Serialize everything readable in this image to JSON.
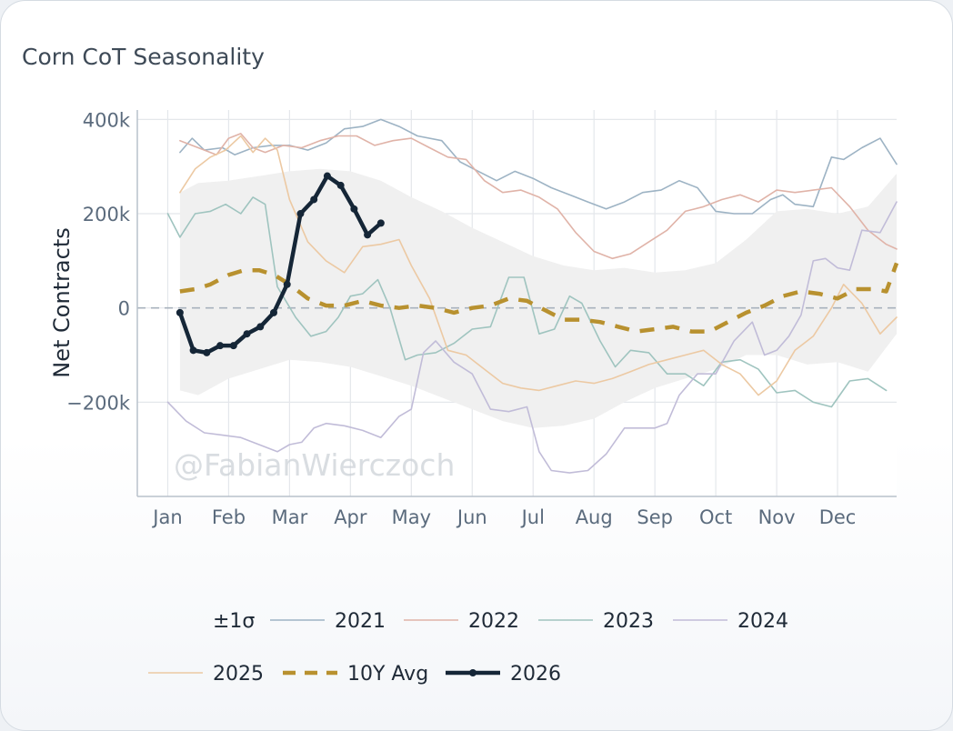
{
  "title": "Corn CoT Seasonality",
  "watermark": "@FabianWierczoch",
  "chart_data": {
    "type": "line",
    "ylabel": "Net Contracts",
    "ylim": [
      -400000,
      420000
    ],
    "xlim": [
      -0.5,
      11.97
    ],
    "y_ticks": [
      400000,
      200000,
      0,
      -200000
    ],
    "y_tick_labels": [
      "400k",
      "200k",
      "0",
      "−200k"
    ],
    "x_ticks": [
      0,
      1,
      2,
      3,
      4,
      5,
      6,
      7,
      8,
      9,
      10,
      11
    ],
    "x_tick_labels": [
      "Jan",
      "Feb",
      "Mar",
      "Apr",
      "May",
      "Jun",
      "Jul",
      "Aug",
      "Sep",
      "Oct",
      "Nov",
      "Dec"
    ],
    "grid": true,
    "legend_position": "bottom",
    "band": {
      "name": "±1σ",
      "color": "#f0f0f0",
      "x": [
        0.2,
        0.5,
        1.0,
        1.5,
        2.0,
        2.5,
        3.0,
        3.5,
        4.0,
        4.5,
        5.0,
        5.5,
        6.0,
        6.5,
        7.0,
        7.5,
        8.0,
        8.5,
        9.0,
        9.5,
        10.0,
        10.5,
        11.0,
        11.5,
        11.97
      ],
      "upper": [
        245000,
        265000,
        270000,
        280000,
        290000,
        295000,
        290000,
        270000,
        235000,
        205000,
        170000,
        140000,
        110000,
        90000,
        80000,
        85000,
        75000,
        80000,
        95000,
        145000,
        205000,
        210000,
        200000,
        215000,
        285000
      ],
      "lower": [
        -175000,
        -185000,
        -150000,
        -130000,
        -110000,
        -115000,
        -125000,
        -145000,
        -165000,
        -190000,
        -215000,
        -240000,
        -255000,
        -250000,
        -235000,
        -200000,
        -170000,
        -150000,
        -130000,
        -100000,
        -100000,
        -120000,
        -115000,
        -135000,
        -55000
      ]
    },
    "series": [
      {
        "name": "2021",
        "color": "#9db3c4",
        "width": 1.6,
        "dash": "",
        "x": [
          0.2,
          0.4,
          0.6,
          0.9,
          1.1,
          1.4,
          1.7,
          2.0,
          2.3,
          2.6,
          2.9,
          3.2,
          3.5,
          3.8,
          4.1,
          4.5,
          4.8,
          5.1,
          5.4,
          5.7,
          6.0,
          6.3,
          6.6,
          6.9,
          7.2,
          7.5,
          7.8,
          8.1,
          8.4,
          8.7,
          9.0,
          9.3,
          9.6,
          9.9,
          10.1,
          10.3,
          10.6,
          10.9,
          11.1,
          11.4,
          11.7,
          11.97
        ],
        "y": [
          330000,
          360000,
          335000,
          340000,
          325000,
          340000,
          345000,
          345000,
          335000,
          350000,
          380000,
          385000,
          400000,
          385000,
          365000,
          355000,
          310000,
          290000,
          270000,
          290000,
          275000,
          255000,
          240000,
          225000,
          210000,
          225000,
          245000,
          250000,
          270000,
          255000,
          205000,
          200000,
          200000,
          230000,
          240000,
          220000,
          215000,
          320000,
          315000,
          340000,
          360000,
          305000
        ]
      },
      {
        "name": "2022",
        "color": "#e0b3a8",
        "width": 1.6,
        "dash": "",
        "x": [
          0.2,
          0.5,
          0.8,
          1.0,
          1.2,
          1.4,
          1.6,
          1.9,
          2.2,
          2.5,
          2.8,
          3.1,
          3.4,
          3.7,
          4.0,
          4.3,
          4.6,
          4.9,
          5.2,
          5.5,
          5.8,
          6.1,
          6.4,
          6.7,
          7.0,
          7.3,
          7.6,
          7.9,
          8.2,
          8.5,
          8.8,
          9.1,
          9.4,
          9.7,
          10.0,
          10.3,
          10.6,
          10.9,
          11.2,
          11.5,
          11.8,
          11.97
        ],
        "y": [
          355000,
          340000,
          325000,
          360000,
          370000,
          340000,
          330000,
          345000,
          340000,
          355000,
          365000,
          365000,
          345000,
          355000,
          360000,
          340000,
          320000,
          315000,
          270000,
          245000,
          250000,
          235000,
          210000,
          160000,
          120000,
          105000,
          115000,
          140000,
          165000,
          205000,
          215000,
          230000,
          240000,
          225000,
          250000,
          245000,
          250000,
          255000,
          215000,
          165000,
          135000,
          125000
        ]
      },
      {
        "name": "2023",
        "color": "#9fc4bf",
        "width": 1.6,
        "dash": "",
        "x": [
          0.0,
          0.2,
          0.45,
          0.7,
          0.95,
          1.2,
          1.4,
          1.6,
          1.8,
          2.1,
          2.35,
          2.6,
          2.8,
          3.0,
          3.2,
          3.45,
          3.65,
          3.9,
          4.1,
          4.4,
          4.7,
          5.0,
          5.3,
          5.6,
          5.85,
          6.1,
          6.35,
          6.6,
          6.8,
          7.1,
          7.35,
          7.6,
          7.9,
          8.2,
          8.5,
          8.8,
          9.1,
          9.4,
          9.7,
          10.0,
          10.3,
          10.6,
          10.9,
          11.2,
          11.5,
          11.8
        ],
        "y": [
          200000,
          150000,
          200000,
          205000,
          220000,
          200000,
          235000,
          220000,
          45000,
          -20000,
          -60000,
          -50000,
          -20000,
          25000,
          30000,
          60000,
          0,
          -110000,
          -100000,
          -95000,
          -75000,
          -45000,
          -40000,
          65000,
          65000,
          -55000,
          -45000,
          25000,
          10000,
          -70000,
          -125000,
          -90000,
          -95000,
          -140000,
          -140000,
          -165000,
          -115000,
          -110000,
          -130000,
          -180000,
          -175000,
          -200000,
          -210000,
          -155000,
          -150000,
          -175000
        ]
      },
      {
        "name": "2024",
        "color": "#c1bcd8",
        "width": 1.6,
        "dash": "",
        "x": [
          0.0,
          0.3,
          0.6,
          0.9,
          1.2,
          1.5,
          1.8,
          2.0,
          2.2,
          2.4,
          2.6,
          2.9,
          3.2,
          3.5,
          3.8,
          4.0,
          4.2,
          4.4,
          4.7,
          5.0,
          5.3,
          5.6,
          5.9,
          6.1,
          6.3,
          6.6,
          6.9,
          7.2,
          7.5,
          7.8,
          8.0,
          8.2,
          8.4,
          8.7,
          9.0,
          9.3,
          9.6,
          9.8,
          10.0,
          10.2,
          10.4,
          10.6,
          10.8,
          11.0,
          11.2,
          11.4,
          11.7,
          11.97
        ],
        "y": [
          -200000,
          -240000,
          -265000,
          -270000,
          -275000,
          -290000,
          -305000,
          -290000,
          -285000,
          -255000,
          -245000,
          -250000,
          -260000,
          -275000,
          -230000,
          -215000,
          -95000,
          -70000,
          -115000,
          -140000,
          -215000,
          -220000,
          -210000,
          -305000,
          -345000,
          -350000,
          -345000,
          -310000,
          -255000,
          -255000,
          -255000,
          -245000,
          -185000,
          -140000,
          -140000,
          -70000,
          -30000,
          -100000,
          -90000,
          -60000,
          -15000,
          100000,
          105000,
          85000,
          80000,
          165000,
          160000,
          225000
        ]
      },
      {
        "name": "2025",
        "color": "#ecc9a3",
        "width": 1.6,
        "dash": "",
        "x": [
          0.2,
          0.45,
          0.7,
          0.95,
          1.2,
          1.4,
          1.6,
          1.8,
          2.0,
          2.3,
          2.6,
          2.9,
          3.2,
          3.5,
          3.8,
          4.0,
          4.3,
          4.6,
          4.9,
          5.2,
          5.5,
          5.8,
          6.1,
          6.4,
          6.7,
          7.0,
          7.3,
          7.6,
          7.9,
          8.2,
          8.5,
          8.8,
          9.1,
          9.4,
          9.7,
          10.0,
          10.3,
          10.6,
          10.9,
          11.1,
          11.4,
          11.7,
          11.97
        ],
        "y": [
          245000,
          295000,
          320000,
          335000,
          365000,
          330000,
          360000,
          335000,
          230000,
          140000,
          100000,
          75000,
          130000,
          135000,
          145000,
          90000,
          20000,
          -90000,
          -100000,
          -130000,
          -160000,
          -170000,
          -175000,
          -165000,
          -155000,
          -160000,
          -150000,
          -135000,
          -120000,
          -110000,
          -100000,
          -90000,
          -120000,
          -140000,
          -185000,
          -155000,
          -90000,
          -60000,
          0,
          50000,
          10000,
          -55000,
          -20000
        ]
      },
      {
        "name": "10Y Avg",
        "color": "#b8912f",
        "width": 4.5,
        "dash": "16 12",
        "x": [
          0.2,
          0.45,
          0.7,
          1.0,
          1.25,
          1.5,
          1.75,
          2.0,
          2.3,
          2.6,
          2.9,
          3.2,
          3.5,
          3.8,
          4.1,
          4.4,
          4.7,
          5.0,
          5.3,
          5.6,
          5.9,
          6.2,
          6.5,
          6.8,
          7.1,
          7.4,
          7.7,
          8.0,
          8.3,
          8.6,
          8.9,
          9.2,
          9.5,
          9.8,
          10.1,
          10.4,
          10.7,
          11.0,
          11.3,
          11.6,
          11.8,
          11.97
        ],
        "y": [
          35000,
          40000,
          50000,
          70000,
          80000,
          80000,
          70000,
          50000,
          20000,
          5000,
          5000,
          15000,
          5000,
          0,
          5000,
          0,
          -10000,
          0,
          5000,
          20000,
          15000,
          -5000,
          -25000,
          -25000,
          -30000,
          -40000,
          -50000,
          -45000,
          -40000,
          -50000,
          -50000,
          -30000,
          -10000,
          5000,
          25000,
          35000,
          30000,
          20000,
          40000,
          40000,
          35000,
          95000
        ]
      },
      {
        "name": "2026",
        "color": "#152637",
        "width": 4.5,
        "dash": "",
        "markers": true,
        "x": [
          0.2,
          0.42,
          0.64,
          0.86,
          1.08,
          1.3,
          1.52,
          1.74,
          1.96,
          2.18,
          2.4,
          2.62,
          2.84,
          3.06,
          3.28,
          3.5,
          3.72,
          3.94
        ],
        "y": [
          -10000,
          -90000,
          -95000,
          -80000,
          -80000,
          -55000,
          -40000,
          -10000,
          50000,
          200000,
          230000,
          280000,
          260000,
          210000,
          155000,
          180000,
          null,
          null
        ]
      }
    ]
  }
}
